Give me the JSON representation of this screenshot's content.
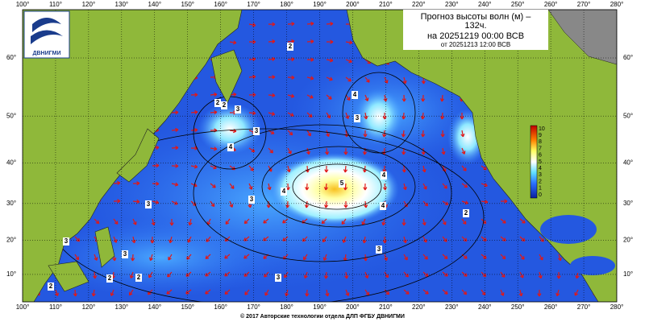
{
  "map": {
    "logo": "ДВНИГМИ",
    "title_line1": "Прогноз высоты волн (м) –",
    "title_line2": "132ч.",
    "valid_time": "на 20251219 00:00 ВСВ",
    "issued_time": "от 20251213 12:00 ВСВ",
    "footer": "© 2017 Авторские технологии отдела ДЛП ФГБУ ДВНИГМИ",
    "lon_ticks": [
      {
        "value": 100,
        "label": "100°"
      },
      {
        "value": 110,
        "label": "110°"
      },
      {
        "value": 120,
        "label": "120°"
      },
      {
        "value": 130,
        "label": "130°"
      },
      {
        "value": 140,
        "label": "140°"
      },
      {
        "value": 150,
        "label": "150°"
      },
      {
        "value": 160,
        "label": "160°"
      },
      {
        "value": 170,
        "label": "170°"
      },
      {
        "value": 180,
        "label": "180°"
      },
      {
        "value": 190,
        "label": "190°"
      },
      {
        "value": 200,
        "label": "200°"
      },
      {
        "value": 210,
        "label": "210°"
      },
      {
        "value": 220,
        "label": "220°"
      },
      {
        "value": 230,
        "label": "230°"
      },
      {
        "value": 240,
        "label": "240°"
      },
      {
        "value": 250,
        "label": "250°"
      },
      {
        "value": 260,
        "label": "260°"
      },
      {
        "value": 270,
        "label": "270°"
      },
      {
        "value": 280,
        "label": "280°"
      }
    ],
    "lat_ticks": [
      {
        "value": 10,
        "label": "10°"
      },
      {
        "value": 20,
        "label": "20°"
      },
      {
        "value": 30,
        "label": "30°"
      },
      {
        "value": 40,
        "label": "40°"
      },
      {
        "value": 50,
        "label": "50°"
      },
      {
        "value": 60,
        "label": "60°"
      }
    ],
    "colorbar_labels": [
      "10",
      "9",
      "8",
      "7",
      "6",
      "5",
      "4",
      "3",
      "2",
      "1",
      "0"
    ],
    "contour_labels": [
      "2",
      "3",
      "3",
      "4",
      "4",
      "2",
      "3",
      "3",
      "4",
      "5",
      "4",
      "4",
      "3",
      "2",
      "3",
      "2",
      "3",
      "3",
      "2",
      "2",
      "3",
      "2"
    ]
  }
}
